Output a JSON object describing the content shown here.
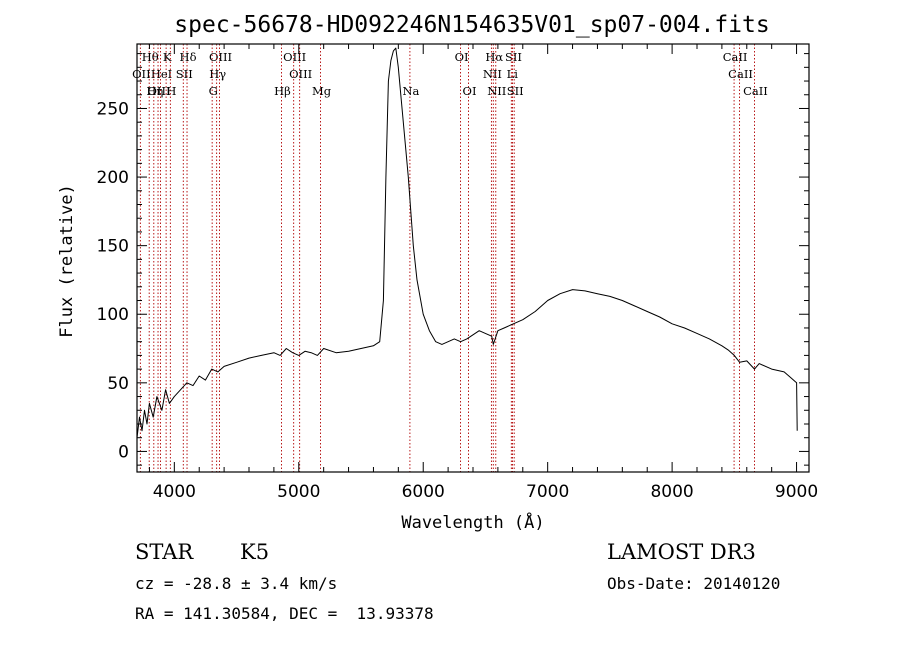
{
  "chart_data": {
    "type": "line",
    "title": "spec-56678-HD092246N154635V01_sp07-004.fits",
    "xlabel": "Wavelength (Å)",
    "ylabel": "Flux (relative)",
    "xlim": [
      3700,
      9100
    ],
    "ylim": [
      -15,
      297
    ],
    "xticks": [
      4000,
      5000,
      6000,
      7000,
      8000,
      9000
    ],
    "yticks": [
      0,
      50,
      100,
      150,
      200,
      250
    ],
    "spectrum": {
      "x": [
        3700,
        3720,
        3740,
        3760,
        3780,
        3800,
        3830,
        3860,
        3900,
        3930,
        3960,
        4000,
        4050,
        4100,
        4150,
        4200,
        4250,
        4300,
        4350,
        4400,
        4500,
        4600,
        4700,
        4800,
        4850,
        4900,
        4950,
        5000,
        5050,
        5100,
        5150,
        5200,
        5300,
        5400,
        5500,
        5600,
        5650,
        5680,
        5700,
        5720,
        5740,
        5760,
        5780,
        5800,
        5820,
        5840,
        5860,
        5880,
        5900,
        5920,
        5950,
        6000,
        6050,
        6100,
        6150,
        6200,
        6250,
        6300,
        6350,
        6400,
        6450,
        6500,
        6550,
        6563,
        6600,
        6650,
        6700,
        6800,
        6900,
        7000,
        7100,
        7200,
        7300,
        7400,
        7500,
        7600,
        7700,
        7800,
        7900,
        8000,
        8100,
        8200,
        8300,
        8400,
        8450,
        8500,
        8542,
        8600,
        8662,
        8700,
        8800,
        8900,
        8950,
        9000,
        9005
      ],
      "y": [
        10,
        25,
        15,
        30,
        20,
        35,
        25,
        40,
        30,
        45,
        35,
        40,
        45,
        50,
        48,
        55,
        52,
        60,
        58,
        62,
        65,
        68,
        70,
        72,
        70,
        75,
        72,
        70,
        73,
        72,
        70,
        75,
        72,
        73,
        75,
        77,
        80,
        110,
        200,
        270,
        285,
        292,
        294,
        280,
        260,
        240,
        220,
        200,
        175,
        150,
        125,
        100,
        88,
        80,
        78,
        80,
        82,
        80,
        82,
        85,
        88,
        86,
        84,
        78,
        88,
        90,
        92,
        96,
        102,
        110,
        115,
        118,
        117,
        115,
        113,
        110,
        106,
        102,
        98,
        93,
        90,
        86,
        82,
        77,
        74,
        70,
        65,
        66,
        60,
        64,
        60,
        58,
        54,
        50,
        15
      ]
    },
    "spectral_lines": [
      {
        "label": "Hθ",
        "x": 3798,
        "row": 1
      },
      {
        "label": "K",
        "x": 3934,
        "row": 1
      },
      {
        "label": "Hδ",
        "x": 4102,
        "row": 1
      },
      {
        "label": "OIII",
        "x": 4363,
        "row": 1
      },
      {
        "label": "OIII",
        "x": 4959,
        "row": 1
      },
      {
        "label": "OI",
        "x": 6300,
        "row": 1
      },
      {
        "label": "Hα",
        "x": 6563,
        "row": 1
      },
      {
        "label": "SII",
        "x": 6717,
        "row": 1
      },
      {
        "label": "CaII",
        "x": 8498,
        "row": 1
      },
      {
        "label": "OII",
        "x": 3727,
        "row": 2
      },
      {
        "label": "HeI",
        "x": 3889,
        "row": 2
      },
      {
        "label": "SII",
        "x": 4072,
        "row": 2
      },
      {
        "label": "Hγ",
        "x": 4340,
        "row": 2
      },
      {
        "label": "OIII",
        "x": 5007,
        "row": 2
      },
      {
        "label": "NII",
        "x": 6548,
        "row": 2
      },
      {
        "label": "Li",
        "x": 6708,
        "row": 2
      },
      {
        "label": "CaII",
        "x": 8542,
        "row": 2
      },
      {
        "label": "OIII",
        "x": 3869,
        "row": 3
      },
      {
        "label": "Hη",
        "x": 3835,
        "row": 3
      },
      {
        "label": "H",
        "x": 3968,
        "row": 3
      },
      {
        "label": "G",
        "x": 4304,
        "row": 3
      },
      {
        "label": "Hβ",
        "x": 4861,
        "row": 3
      },
      {
        "label": "Mg",
        "x": 5175,
        "row": 3
      },
      {
        "label": "Na",
        "x": 5893,
        "row": 3
      },
      {
        "label": "OI",
        "x": 6364,
        "row": 3
      },
      {
        "label": "NII",
        "x": 6583,
        "row": 3
      },
      {
        "label": "SII",
        "x": 6731,
        "row": 3
      },
      {
        "label": "CaII",
        "x": 8662,
        "row": 3
      }
    ]
  },
  "info": {
    "object_class": "STAR",
    "subclass": "K5",
    "survey": "LAMOST DR3",
    "cz": "cz = -28.8 ± 3.4 km/s",
    "obs_date": "Obs-Date: 20140120",
    "coords": "RA = 141.30584, DEC =  13.93378"
  },
  "colors": {
    "line_marker": "#b00000",
    "spectrum": "#000000",
    "axes": "#000000"
  }
}
